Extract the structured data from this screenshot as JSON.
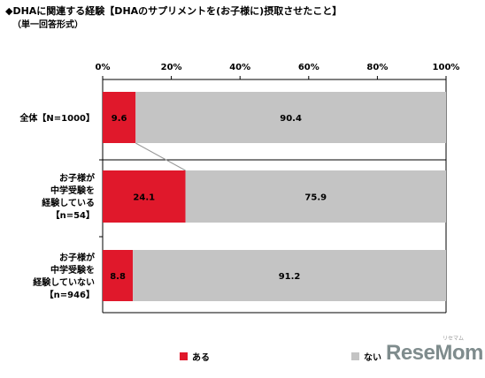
{
  "header": {
    "title": "◆DHAに関連する経験【DHAのサプリメントを(お子様に)摂取させたこと】",
    "subtitle": "（単一回答形式）"
  },
  "chart_data": {
    "type": "bar",
    "stacked": true,
    "orientation": "horizontal",
    "xlim": [
      0,
      100
    ],
    "x_ticks": [
      "0%",
      "20%",
      "40%",
      "60%",
      "80%",
      "100%"
    ],
    "categories": [
      [
        "全体【N=1000】"
      ],
      [
        "お子様が",
        "中学受験を",
        "経験している",
        "【n=54】"
      ],
      [
        "お子様が",
        "中学受験を",
        "経験していない",
        "【n=946】"
      ]
    ],
    "series": [
      {
        "name": "ある",
        "color": "#e0182b",
        "values": [
          9.6,
          24.1,
          8.8
        ]
      },
      {
        "name": "ない",
        "color": "#c4c4c4",
        "values": [
          90.4,
          75.9,
          91.2
        ]
      }
    ],
    "value_labels": [
      [
        "9.6",
        "90.4"
      ],
      [
        "24.1",
        "75.9"
      ],
      [
        "8.8",
        "91.2"
      ]
    ],
    "legend_position": "bottom",
    "grid": false
  },
  "watermark": {
    "text": "ReseMom",
    "ruby": "リセマム"
  }
}
